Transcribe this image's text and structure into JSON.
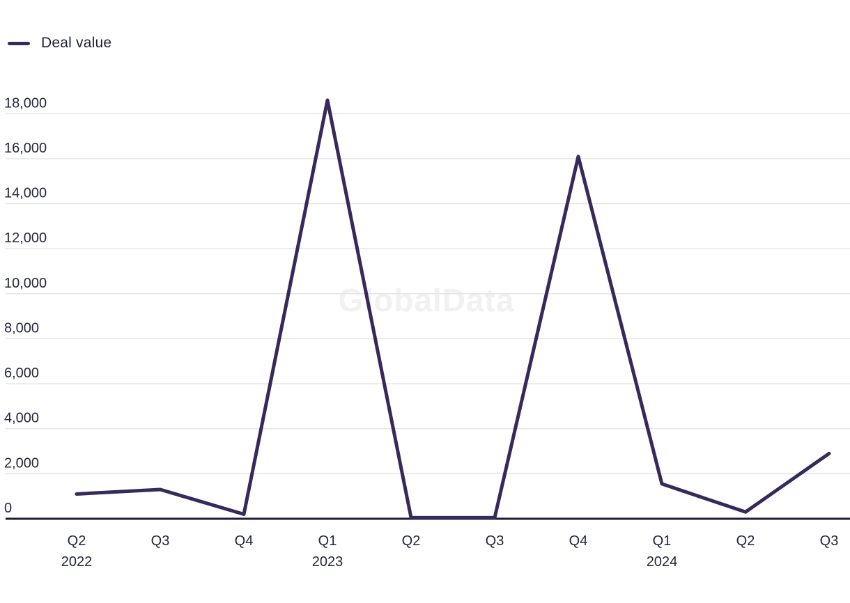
{
  "legend": {
    "label": "Deal value"
  },
  "watermark": "GlobalData",
  "colors": {
    "line": "#38295c",
    "axis": "#1f1b38",
    "grid": "#e3e3e5",
    "text": "#23263e",
    "watermark": "#f1f1f2"
  },
  "chart_data": {
    "type": "line",
    "title": "",
    "xlabel": "",
    "ylabel": "",
    "legend_position": "top-left",
    "grid": "horizontal",
    "ylim": [
      0,
      18000
    ],
    "y_ticks": [
      {
        "value": 0,
        "label": "0"
      },
      {
        "value": 2000,
        "label": "2,000"
      },
      {
        "value": 4000,
        "label": "4,000"
      },
      {
        "value": 6000,
        "label": "6,000"
      },
      {
        "value": 8000,
        "label": "8,000"
      },
      {
        "value": 10000,
        "label": "10,000"
      },
      {
        "value": 12000,
        "label": "12,000"
      },
      {
        "value": 14000,
        "label": "14,000"
      },
      {
        "value": 16000,
        "label": "16,000"
      },
      {
        "value": 18000,
        "label": "18,000"
      }
    ],
    "categories": [
      "Q2",
      "Q3",
      "Q4",
      "Q1",
      "Q2",
      "Q3",
      "Q4",
      "Q1",
      "Q2",
      "Q3"
    ],
    "year_markers": [
      {
        "index": 0,
        "label": "2022"
      },
      {
        "index": 3,
        "label": "2023"
      },
      {
        "index": 7,
        "label": "2024"
      }
    ],
    "series": [
      {
        "name": "Deal value",
        "values": [
          1100,
          1300,
          200,
          18600,
          50,
          50,
          16100,
          1550,
          300,
          2900
        ]
      }
    ]
  }
}
